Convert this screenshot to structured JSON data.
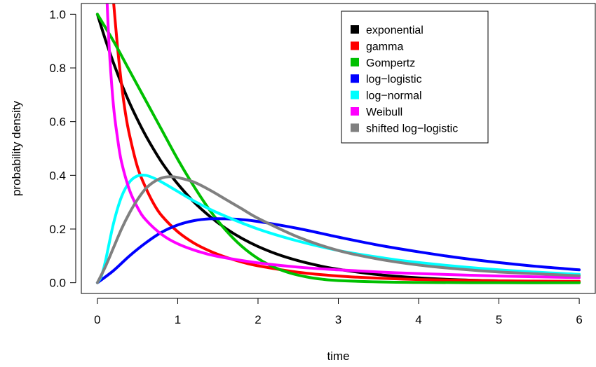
{
  "chart_data": {
    "type": "line",
    "title": "",
    "xlabel": "time",
    "ylabel": "probability density",
    "xlim": [
      -0.2,
      6.2
    ],
    "ylim": [
      -0.04,
      1.04
    ],
    "xticks": [
      0,
      1,
      2,
      3,
      4,
      5,
      6
    ],
    "xtick_labels": [
      "0",
      "1",
      "2",
      "3",
      "4",
      "5",
      "6"
    ],
    "yticks": [
      0.0,
      0.2,
      0.4,
      0.6,
      0.8,
      1.0
    ],
    "ytick_labels": [
      "0.0",
      "0.2",
      "0.4",
      "0.6",
      "0.8",
      "1.0"
    ],
    "grid": false,
    "legend_position": "top-right",
    "series": [
      {
        "name": "exponential",
        "color": "#000000",
        "x": [
          0,
          0.1,
          0.2,
          0.3,
          0.4,
          0.5,
          0.6,
          0.7,
          0.8,
          0.9,
          1.0,
          1.2,
          1.4,
          1.6,
          1.8,
          2.0,
          2.25,
          2.5,
          2.75,
          3.0,
          3.5,
          4.0,
          4.5,
          5.0,
          5.5,
          6.0
        ],
        "y": [
          1.0,
          0.905,
          0.819,
          0.741,
          0.67,
          0.607,
          0.549,
          0.497,
          0.449,
          0.407,
          0.368,
          0.301,
          0.247,
          0.202,
          0.165,
          0.135,
          0.105,
          0.082,
          0.064,
          0.05,
          0.03,
          0.018,
          0.011,
          0.007,
          0.004,
          0.0025
        ]
      },
      {
        "name": "gamma",
        "color": "#ff0000",
        "x": [
          0.2,
          0.25,
          0.3,
          0.35,
          0.4,
          0.5,
          0.6,
          0.7,
          0.8,
          1.0,
          1.2,
          1.4,
          1.6,
          1.8,
          2.0,
          2.5,
          3.0,
          3.5,
          4.0,
          5.0,
          6.0
        ],
        "y": [
          1.05,
          0.88,
          0.74,
          0.63,
          0.55,
          0.43,
          0.355,
          0.295,
          0.25,
          0.19,
          0.148,
          0.118,
          0.095,
          0.077,
          0.063,
          0.039,
          0.025,
          0.017,
          0.012,
          0.007,
          0.005
        ]
      },
      {
        "name": "Gompertz",
        "color": "#00c000",
        "x": [
          0,
          0.2,
          0.4,
          0.6,
          0.8,
          1.0,
          1.2,
          1.4,
          1.6,
          1.8,
          2.0,
          2.2,
          2.4,
          2.6,
          2.8,
          3.0,
          3.5,
          4.0,
          5.0,
          6.0
        ],
        "y": [
          1.0,
          0.9,
          0.79,
          0.68,
          0.57,
          0.46,
          0.36,
          0.27,
          0.195,
          0.135,
          0.09,
          0.058,
          0.036,
          0.022,
          0.013,
          0.008,
          0.003,
          0.001,
          0.0,
          0.0
        ]
      },
      {
        "name": "log−logistic",
        "color": "#0000ff",
        "x": [
          0,
          0.2,
          0.4,
          0.6,
          0.8,
          1.0,
          1.2,
          1.4,
          1.6,
          1.8,
          2.0,
          2.5,
          3.0,
          3.5,
          4.0,
          4.5,
          5.0,
          5.5,
          6.0
        ],
        "y": [
          0.0,
          0.045,
          0.1,
          0.148,
          0.188,
          0.215,
          0.231,
          0.238,
          0.238,
          0.235,
          0.228,
          0.202,
          0.17,
          0.14,
          0.115,
          0.093,
          0.075,
          0.06,
          0.048
        ]
      },
      {
        "name": "log−normal",
        "color": "#00ffff",
        "x": [
          0,
          0.05,
          0.1,
          0.2,
          0.3,
          0.4,
          0.5,
          0.6,
          0.7,
          0.8,
          1.0,
          1.2,
          1.5,
          2.0,
          2.5,
          3.0,
          3.5,
          4.0,
          5.0,
          6.0
        ],
        "y": [
          0.0,
          0.025,
          0.08,
          0.22,
          0.32,
          0.375,
          0.398,
          0.4,
          0.39,
          0.375,
          0.34,
          0.305,
          0.26,
          0.2,
          0.155,
          0.12,
          0.095,
          0.075,
          0.048,
          0.031
        ]
      },
      {
        "name": "Weibull",
        "color": "#ff00ff",
        "x": [
          0.12,
          0.15,
          0.2,
          0.25,
          0.3,
          0.4,
          0.5,
          0.6,
          0.8,
          1.0,
          1.25,
          1.5,
          2.0,
          2.5,
          3.0,
          3.5,
          4.0,
          5.0,
          6.0
        ],
        "y": [
          1.05,
          0.86,
          0.66,
          0.54,
          0.45,
          0.345,
          0.28,
          0.235,
          0.18,
          0.145,
          0.117,
          0.098,
          0.074,
          0.058,
          0.048,
          0.04,
          0.034,
          0.025,
          0.019
        ]
      },
      {
        "name": "shifted log−logistic",
        "color": "#808080",
        "x": [
          0,
          0.1,
          0.2,
          0.3,
          0.4,
          0.5,
          0.6,
          0.7,
          0.8,
          0.9,
          1.0,
          1.2,
          1.4,
          1.6,
          1.8,
          2.0,
          2.5,
          3.0,
          3.5,
          4.0,
          4.5,
          5.0,
          6.0
        ],
        "y": [
          0.0,
          0.06,
          0.13,
          0.2,
          0.26,
          0.31,
          0.35,
          0.375,
          0.39,
          0.395,
          0.392,
          0.375,
          0.345,
          0.31,
          0.275,
          0.24,
          0.17,
          0.12,
          0.088,
          0.066,
          0.051,
          0.04,
          0.026
        ]
      }
    ]
  }
}
